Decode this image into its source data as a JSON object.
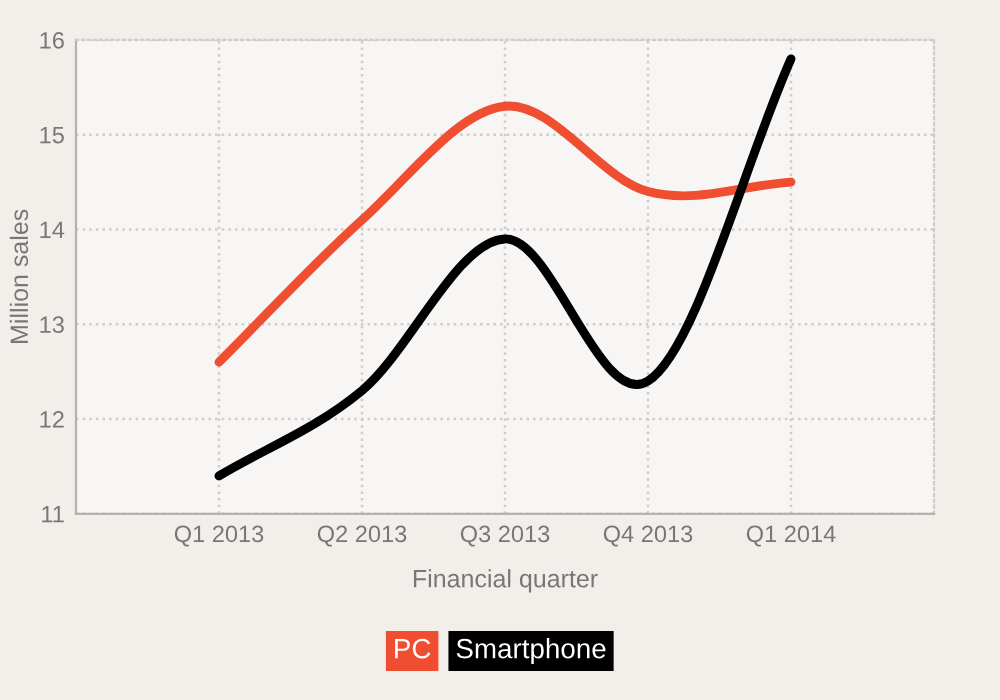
{
  "chart_data": {
    "type": "line",
    "xlabel": "Financial quarter",
    "ylabel": "Million sales",
    "categories": [
      "Q1 2013",
      "Q2 2013",
      "Q3 2013",
      "Q4 2013",
      "Q1 2014"
    ],
    "series": [
      {
        "name": "PC",
        "color": "#f04e30",
        "values": [
          12.6,
          14.1,
          15.3,
          14.4,
          14.5
        ]
      },
      {
        "name": "Smartphone",
        "color": "#000000",
        "values": [
          11.4,
          12.3,
          13.9,
          12.4,
          15.8
        ]
      }
    ],
    "ylim": [
      11,
      16
    ],
    "yticks": [
      11,
      12,
      13,
      14,
      15,
      16
    ],
    "grid": true,
    "legend": "bottom",
    "marker": "none",
    "line_style": "solid"
  }
}
